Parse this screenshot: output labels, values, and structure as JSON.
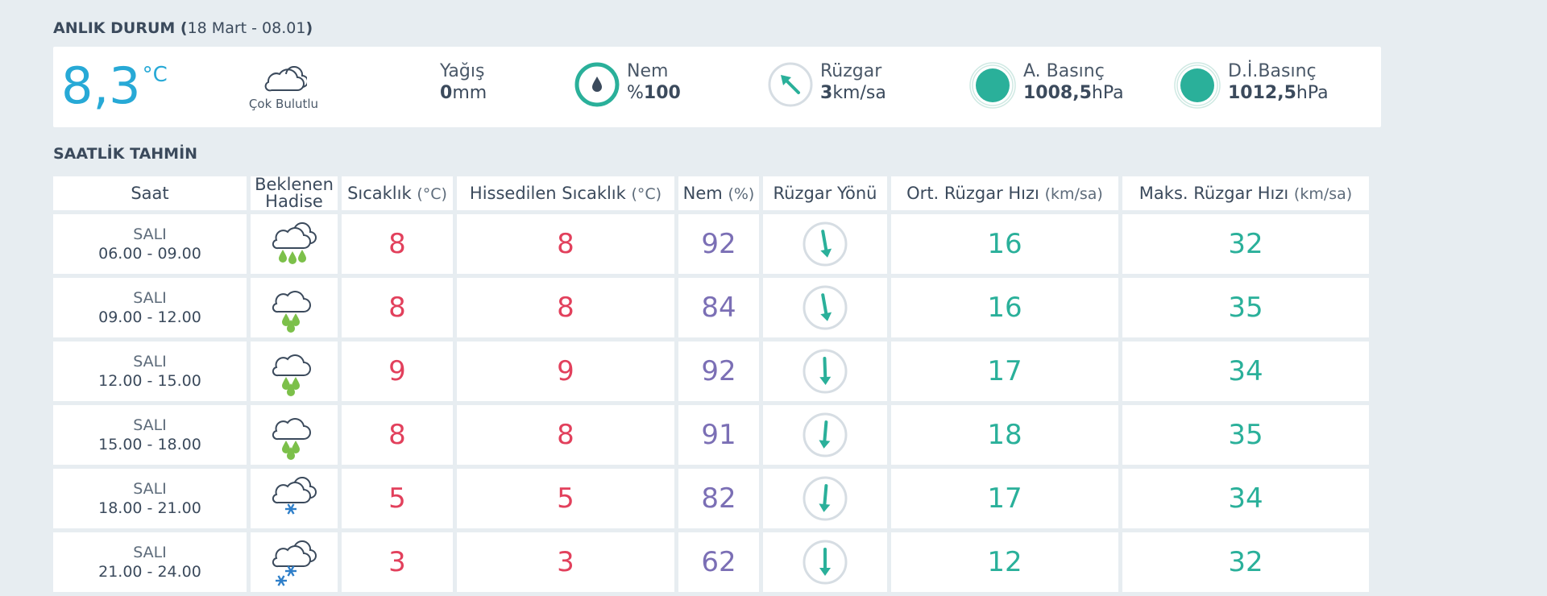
{
  "current": {
    "title_bold": "ANLIK DURUM (",
    "title_date": "18 Mart - 08.01",
    "title_close": ")",
    "temp": "8,3",
    "temp_unit": "°C",
    "condition": "Çok Bulutlu",
    "precip_label": "Yağış",
    "precip_value": "0",
    "precip_unit": "mm",
    "humidity_label": "Nem",
    "humidity_prefix": "%",
    "humidity_value": "100",
    "wind_label": "Rüzgar",
    "wind_value": "3",
    "wind_unit": "km/sa",
    "pressure_label": "A. Basınç",
    "pressure_value": "1008,5",
    "pressure_unit": "hPa",
    "sea_pressure_label": "D.İ.Basınç",
    "sea_pressure_value": "1012,5",
    "sea_pressure_unit": "hPa",
    "colors": {
      "accent_blue": "#27a9d6",
      "teal": "#2ab09a"
    }
  },
  "hourly": {
    "title": "SAATLİK TAHMİN",
    "headers": {
      "saat": "Saat",
      "hadise_1": "Beklenen",
      "hadise_2": "Hadise",
      "sicaklik": "Sıcaklık",
      "sicaklik_unit": "(°C)",
      "hissedilen": "Hissedilen Sıcaklık",
      "hissedilen_unit": "(°C)",
      "nem": "Nem",
      "nem_unit": "(%)",
      "yon": "Rüzgar Yönü",
      "ort": "Ort. Rüzgar Hızı",
      "ort_unit": "(km/sa)",
      "maks": "Maks. Rüzgar Hızı",
      "maks_unit": "(km/sa)"
    },
    "rows": [
      {
        "day": "SALI",
        "time": "06.00 - 09.00",
        "icon": "rain-heavy-cloud-icon",
        "temp": "8",
        "feels": "8",
        "humidity": "92",
        "wind_dir_deg": 170,
        "avg": "16",
        "max": "32"
      },
      {
        "day": "SALI",
        "time": "09.00 - 12.00",
        "icon": "rain-cloud-icon",
        "temp": "8",
        "feels": "8",
        "humidity": "84",
        "wind_dir_deg": 170,
        "avg": "16",
        "max": "35"
      },
      {
        "day": "SALI",
        "time": "12.00 - 15.00",
        "icon": "rain-cloud-icon",
        "temp": "9",
        "feels": "9",
        "humidity": "92",
        "wind_dir_deg": 178,
        "avg": "17",
        "max": "34"
      },
      {
        "day": "SALI",
        "time": "15.00 - 18.00",
        "icon": "rain-cloud-icon",
        "temp": "8",
        "feels": "8",
        "humidity": "91",
        "wind_dir_deg": 185,
        "avg": "18",
        "max": "35"
      },
      {
        "day": "SALI",
        "time": "18.00 - 21.00",
        "icon": "snow-cloud-icon",
        "temp": "5",
        "feels": "5",
        "humidity": "82",
        "wind_dir_deg": 185,
        "avg": "17",
        "max": "34"
      },
      {
        "day": "SALI",
        "time": "21.00 - 24.00",
        "icon": "snow-heavy-cloud-icon",
        "temp": "3",
        "feels": "3",
        "humidity": "62",
        "wind_dir_deg": 180,
        "avg": "12",
        "max": "32"
      }
    ]
  }
}
